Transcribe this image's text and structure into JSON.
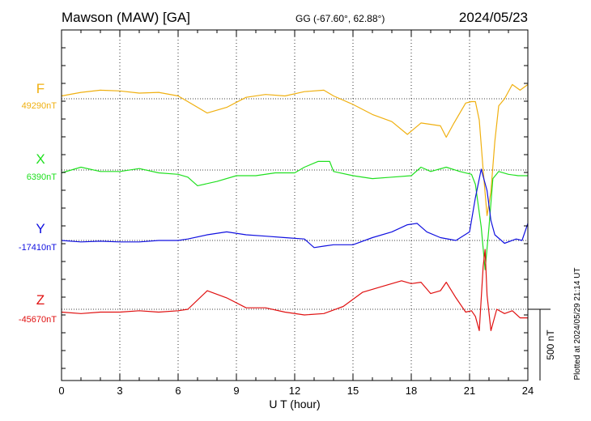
{
  "header": {
    "station": "Mawson (MAW)  [GA]",
    "coords": "GG (-67.60°,  62.88°)",
    "date": "2024/05/23"
  },
  "plotted_note": "Plotted at 2024/05/29 21:14 UT",
  "scale_label": "500 nT",
  "chart_data": {
    "type": "line",
    "title": "",
    "xlabel": "U T (hour)",
    "ylabel": "",
    "xlim": [
      0,
      24
    ],
    "x_ticks": [
      0,
      3,
      6,
      9,
      12,
      15,
      18,
      21,
      24
    ],
    "x_tick_labels": [
      "0",
      "3",
      "6",
      "9",
      "12",
      "15",
      "18",
      "21",
      "24"
    ],
    "x_minor_step_hours": 1,
    "scale_bar_nT": 500,
    "grid": true,
    "series": [
      {
        "name": "F",
        "baseline_label": "49290nT",
        "color": "#f0b010",
        "points": [
          [
            0,
            20
          ],
          [
            1,
            45
          ],
          [
            2,
            60
          ],
          [
            3,
            55
          ],
          [
            4,
            40
          ],
          [
            5,
            45
          ],
          [
            6,
            20
          ],
          [
            6.5,
            -20
          ],
          [
            7.5,
            -100
          ],
          [
            8.5,
            -60
          ],
          [
            9.5,
            10
          ],
          [
            10.5,
            30
          ],
          [
            11.5,
            20
          ],
          [
            12.5,
            50
          ],
          [
            13.5,
            60
          ],
          [
            14,
            20
          ],
          [
            15,
            -40
          ],
          [
            16,
            -110
          ],
          [
            17,
            -160
          ],
          [
            17.8,
            -250
          ],
          [
            18.5,
            -170
          ],
          [
            19.5,
            -190
          ],
          [
            19.8,
            -270
          ],
          [
            20.2,
            -170
          ],
          [
            20.8,
            -30
          ],
          [
            21.1,
            -20
          ],
          [
            21.3,
            -20
          ],
          [
            21.5,
            -150
          ],
          [
            21.7,
            -500
          ],
          [
            21.9,
            -820
          ],
          [
            22.1,
            -650
          ],
          [
            22.3,
            -300
          ],
          [
            22.5,
            -50
          ],
          [
            22.8,
            0
          ],
          [
            23.2,
            100
          ],
          [
            23.6,
            60
          ],
          [
            24,
            100
          ]
        ]
      },
      {
        "name": "X",
        "baseline_label": "6390nT",
        "color": "#20e020",
        "points": [
          [
            0,
            -20
          ],
          [
            1,
            20
          ],
          [
            2,
            -10
          ],
          [
            3,
            -10
          ],
          [
            4,
            10
          ],
          [
            5,
            -20
          ],
          [
            6,
            -30
          ],
          [
            6.5,
            -50
          ],
          [
            7,
            -110
          ],
          [
            8,
            -80
          ],
          [
            9,
            -40
          ],
          [
            10,
            -40
          ],
          [
            11,
            -20
          ],
          [
            12,
            -20
          ],
          [
            12.5,
            20
          ],
          [
            13.2,
            60
          ],
          [
            13.8,
            60
          ],
          [
            14,
            -10
          ],
          [
            15,
            -40
          ],
          [
            16,
            -60
          ],
          [
            17,
            -50
          ],
          [
            18,
            -40
          ],
          [
            18.5,
            20
          ],
          [
            19,
            -10
          ],
          [
            19.8,
            20
          ],
          [
            20.5,
            -10
          ],
          [
            21.1,
            -30
          ],
          [
            21.3,
            -100
          ],
          [
            21.6,
            -400
          ],
          [
            21.8,
            -700
          ],
          [
            22,
            -400
          ],
          [
            22.2,
            -60
          ],
          [
            22.5,
            -10
          ],
          [
            23,
            -30
          ],
          [
            23.5,
            -40
          ],
          [
            24,
            -40
          ]
        ]
      },
      {
        "name": "Y",
        "baseline_label": "-17410nT",
        "color": "#1010e0",
        "points": [
          [
            0,
            0
          ],
          [
            1,
            -10
          ],
          [
            2,
            -5
          ],
          [
            3,
            -10
          ],
          [
            4,
            -10
          ],
          [
            5,
            0
          ],
          [
            6,
            0
          ],
          [
            6.5,
            10
          ],
          [
            7.5,
            40
          ],
          [
            8.5,
            60
          ],
          [
            9.5,
            40
          ],
          [
            10.5,
            30
          ],
          [
            11.5,
            20
          ],
          [
            12.5,
            10
          ],
          [
            13,
            -50
          ],
          [
            13.5,
            -40
          ],
          [
            14,
            -30
          ],
          [
            15,
            -30
          ],
          [
            16,
            20
          ],
          [
            17,
            60
          ],
          [
            17.8,
            110
          ],
          [
            18.3,
            120
          ],
          [
            18.8,
            60
          ],
          [
            19.5,
            20
          ],
          [
            20.3,
            0
          ],
          [
            21,
            60
          ],
          [
            21.3,
            300
          ],
          [
            21.6,
            500
          ],
          [
            21.9,
            350
          ],
          [
            22.1,
            140
          ],
          [
            22.3,
            40
          ],
          [
            22.8,
            -20
          ],
          [
            23.4,
            10
          ],
          [
            23.7,
            0
          ],
          [
            24,
            120
          ]
        ]
      },
      {
        "name": "Z",
        "baseline_label": "-45670nT",
        "color": "#e01010",
        "points": [
          [
            0,
            -20
          ],
          [
            1,
            -30
          ],
          [
            2,
            -20
          ],
          [
            3,
            -20
          ],
          [
            4,
            -10
          ],
          [
            5,
            -20
          ],
          [
            6,
            -10
          ],
          [
            6.5,
            0
          ],
          [
            7.5,
            130
          ],
          [
            8.5,
            80
          ],
          [
            9.5,
            10
          ],
          [
            10.5,
            10
          ],
          [
            11.5,
            -20
          ],
          [
            12.5,
            -40
          ],
          [
            13.5,
            -30
          ],
          [
            14.5,
            20
          ],
          [
            15.5,
            120
          ],
          [
            16.5,
            160
          ],
          [
            17.5,
            200
          ],
          [
            18,
            180
          ],
          [
            18.5,
            190
          ],
          [
            19,
            110
          ],
          [
            19.5,
            130
          ],
          [
            19.8,
            190
          ],
          [
            20.3,
            80
          ],
          [
            20.8,
            -20
          ],
          [
            21.1,
            -10
          ],
          [
            21.3,
            -50
          ],
          [
            21.5,
            -150
          ],
          [
            21.7,
            300
          ],
          [
            21.8,
            420
          ],
          [
            21.9,
            100
          ],
          [
            22.1,
            -150
          ],
          [
            22.4,
            0
          ],
          [
            22.8,
            -30
          ],
          [
            23.2,
            -10
          ],
          [
            23.6,
            -60
          ],
          [
            24,
            -60
          ]
        ]
      }
    ]
  }
}
